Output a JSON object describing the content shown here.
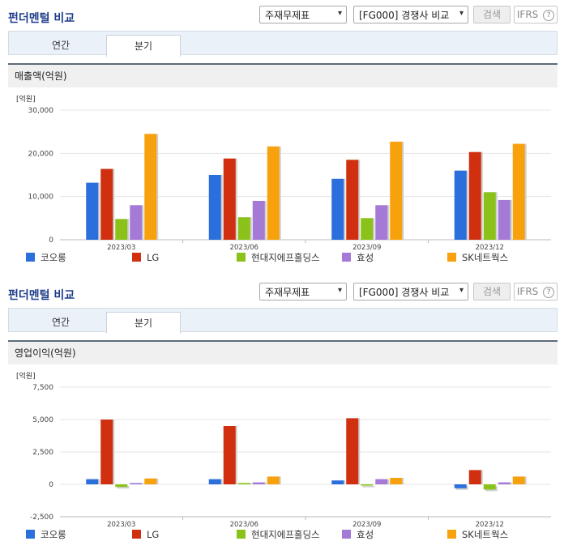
{
  "panels": [
    {
      "title": "펀더멘털 비교",
      "select1": "주재무제표",
      "select2": "[FG000] 경쟁사 비교",
      "search_label": "검색",
      "ifrs_label": "IFRS",
      "ifrs_help": "?",
      "tabs": [
        {
          "label": "연간"
        },
        {
          "label": "분기"
        }
      ],
      "section_header": "매출액(억원)"
    },
    {
      "title": "펀더멘털 비교",
      "select1": "주재무제표",
      "select2": "[FG000] 경쟁사 비교",
      "search_label": "검색",
      "ifrs_label": "IFRS",
      "ifrs_help": "?",
      "tabs": [
        {
          "label": "연간"
        },
        {
          "label": "분기"
        }
      ],
      "section_header": "영업이익(억원)"
    }
  ],
  "colors": {
    "코오롱": "#2a6fdb",
    "LG": "#d03010",
    "현대지에프홀딩스": "#8bc21a",
    "효성": "#a57ad6",
    "SK네트웍스": "#f7a20c"
  },
  "chart_data": [
    {
      "type": "bar",
      "unit_label": "[억원]",
      "categories": [
        "2023/03",
        "2023/06",
        "2023/09",
        "2023/12"
      ],
      "ylim": [
        0,
        30000
      ],
      "yticks": [
        "0",
        "10,000",
        "20,000",
        "30,000"
      ],
      "ytick_values": [
        0,
        10000,
        20000,
        30000
      ],
      "grid": true,
      "legend_position": "bottom",
      "series": [
        {
          "name": "코오롱",
          "values": [
            13200,
            15000,
            14100,
            16000
          ]
        },
        {
          "name": "LG",
          "values": [
            16400,
            18800,
            18500,
            20300
          ]
        },
        {
          "name": "현대지에프홀딩스",
          "values": [
            4800,
            5200,
            5000,
            11000
          ]
        },
        {
          "name": "효성",
          "values": [
            8000,
            9000,
            8000,
            9200
          ]
        },
        {
          "name": "SK네트웍스",
          "values": [
            24500,
            21600,
            22700,
            22200
          ]
        }
      ]
    },
    {
      "type": "bar",
      "unit_label": "[억원]",
      "categories": [
        "2023/03",
        "2023/06",
        "2023/09",
        "2023/12"
      ],
      "ylim": [
        -2500,
        7500
      ],
      "yticks": [
        "-2,500",
        "0",
        "2,500",
        "5,000",
        "7,500"
      ],
      "ytick_values": [
        -2500,
        0,
        2500,
        5000,
        7500
      ],
      "grid": true,
      "legend_position": "bottom",
      "series": [
        {
          "name": "코오롱",
          "values": [
            400,
            400,
            300,
            -300
          ]
        },
        {
          "name": "LG",
          "values": [
            5000,
            4500,
            5100,
            1100
          ]
        },
        {
          "name": "현대지에프홀딩스",
          "values": [
            -200,
            100,
            -100,
            -400
          ]
        },
        {
          "name": "효성",
          "values": [
            100,
            150,
            400,
            150
          ]
        },
        {
          "name": "SK네트웍스",
          "values": [
            450,
            600,
            500,
            600
          ]
        }
      ]
    }
  ]
}
